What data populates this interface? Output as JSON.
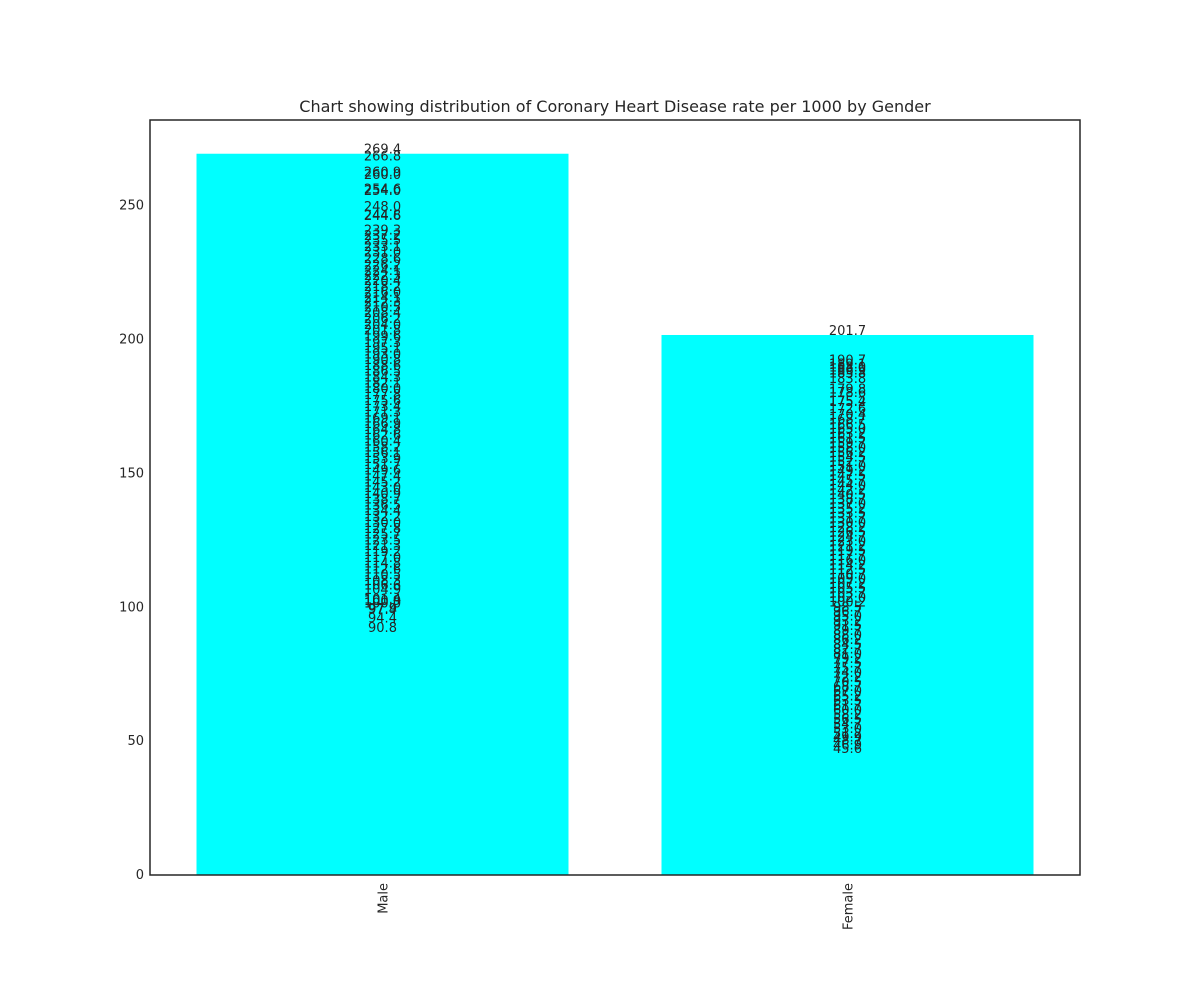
{
  "chart_data": {
    "type": "bar",
    "title": "Chart showing distribution of Coronary Heart Disease rate per 1000 by Gender",
    "xlabel": "",
    "ylabel": "",
    "categories": [
      "Male",
      "Female"
    ],
    "values": [
      269.4,
      201.7
    ],
    "ylim": [
      0,
      282
    ],
    "yticks": [
      0,
      50,
      100,
      150,
      200,
      250
    ],
    "x_tick_rotation": "vertical",
    "grid": false,
    "bar_color": "#00ffff",
    "text_color": "#262626",
    "bar_labels": [
      {
        "category": "Male",
        "values": [
          269.4,
          266.8,
          260.9,
          260.0,
          254.6,
          254.0,
          248.0,
          244.8,
          244.6,
          239.3,
          237.2,
          235.5,
          233.1,
          231.0,
          228.6,
          226.2,
          224.1,
          222.3,
          220.4,
          218.2,
          216.0,
          214.1,
          212.3,
          210.5,
          208.4,
          206.2,
          204.0,
          201.8,
          199.6,
          197.3,
          195.1,
          193.0,
          190.8,
          188.6,
          186.5,
          184.3,
          182.1,
          180.0,
          177.8,
          175.6,
          173.4,
          171.3,
          169.1,
          166.9,
          164.8,
          162.6,
          160.4,
          158.2,
          156.1,
          153.9,
          151.7,
          149.6,
          147.4,
          145.2,
          143.0,
          140.9,
          138.7,
          136.5,
          134.4,
          132.2,
          130.0,
          127.8,
          125.7,
          123.5,
          121.3,
          119.2,
          117.0,
          114.8,
          112.6,
          110.5,
          108.3,
          106.6,
          104.9,
          101.4,
          100.9,
          100.0,
          97.9,
          97.4,
          94.4,
          90.8
        ]
      },
      {
        "category": "Female",
        "values": [
          201.7,
          190.7,
          189.1,
          188.0,
          186.9,
          185.8,
          183.8,
          179.8,
          178.6,
          175.4,
          175.2,
          172.6,
          170.4,
          168.7,
          166.5,
          165.0,
          163.2,
          161.5,
          159.7,
          158.0,
          156.2,
          154.5,
          152.7,
          151.0,
          149.2,
          147.5,
          145.7,
          144.0,
          142.2,
          140.5,
          138.7,
          137.0,
          135.2,
          133.5,
          131.7,
          130.0,
          128.2,
          126.5,
          124.7,
          123.0,
          121.2,
          119.5,
          117.7,
          116.0,
          114.2,
          112.5,
          110.7,
          109.0,
          107.2,
          105.5,
          103.7,
          102.0,
          100.2,
          98.5,
          96.7,
          95.0,
          93.2,
          91.5,
          89.7,
          88.0,
          86.2,
          84.5,
          82.7,
          81.0,
          79.2,
          77.5,
          75.7,
          74.0,
          72.2,
          70.5,
          68.7,
          67.0,
          65.2,
          63.5,
          61.7,
          60.0,
          58.2,
          56.5,
          54.7,
          53.0,
          51.2,
          49.9,
          48.7,
          46.9,
          45.6
        ]
      }
    ]
  }
}
